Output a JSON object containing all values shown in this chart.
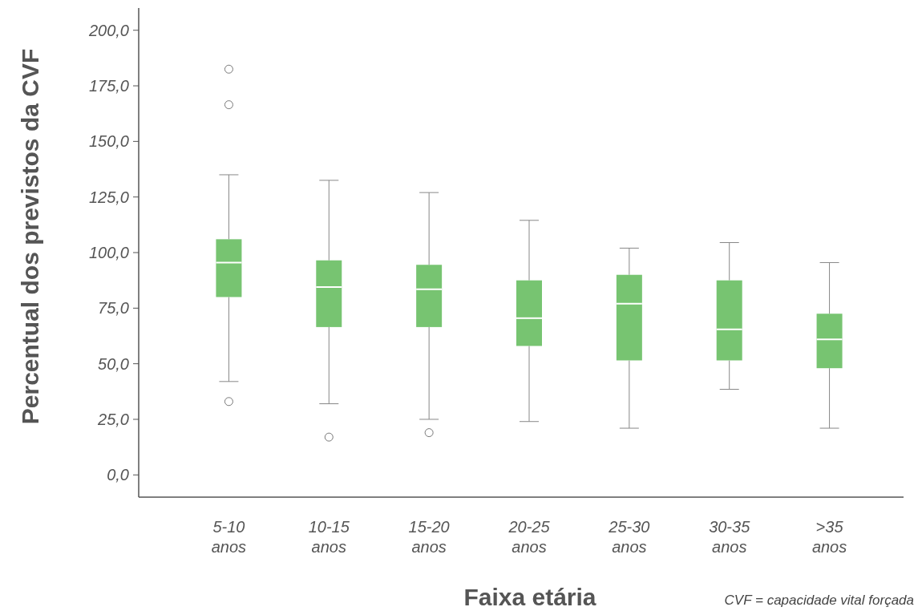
{
  "chart_data": {
    "type": "box",
    "xlabel": "Faixa etária",
    "ylabel": "Percentual dos previstos da CVF",
    "categories": [
      "5-10 anos",
      "10-15 anos",
      "15-20 anos",
      "20-25 anos",
      "25-30 anos",
      "30-35 anos",
      ">35 anos"
    ],
    "color": "#77c471",
    "boxes": [
      {
        "low": 42,
        "q1": 80,
        "median": 95.5,
        "q3": 106,
        "high": 135,
        "outliers": [
          182.5,
          166.5,
          33
        ]
      },
      {
        "low": 32,
        "q1": 66.5,
        "median": 84.5,
        "q3": 96.5,
        "high": 132.5,
        "outliers": [
          17
        ]
      },
      {
        "low": 25,
        "q1": 66.5,
        "median": 83.5,
        "q3": 94.5,
        "high": 127,
        "outliers": [
          19
        ]
      },
      {
        "low": 24,
        "q1": 58,
        "median": 70.5,
        "q3": 87.5,
        "high": 114.5
      },
      {
        "low": 21,
        "q1": 51.5,
        "median": 77,
        "q3": 90,
        "high": 102
      },
      {
        "low": 38.5,
        "q1": 51.5,
        "median": 65.5,
        "q3": 87.5,
        "high": 104.5
      },
      {
        "low": 21,
        "q1": 48,
        "median": 61,
        "q3": 72.5,
        "high": 95.5
      }
    ],
    "ylim": [
      -10,
      210
    ],
    "yticks": [
      {
        "value": 0,
        "label": "0,0"
      },
      {
        "value": 25,
        "label": "25,0"
      },
      {
        "value": 50,
        "label": "50,0"
      },
      {
        "value": 75,
        "label": "75,0"
      },
      {
        "value": 100,
        "label": "100,0"
      },
      {
        "value": 125,
        "label": "125,0"
      },
      {
        "value": 150,
        "label": "150,0"
      },
      {
        "value": 175,
        "label": "175,0"
      },
      {
        "value": 200,
        "label": "200,0"
      }
    ],
    "grid": false,
    "annotations": [
      "CVF = capacidade vital forçada"
    ]
  }
}
